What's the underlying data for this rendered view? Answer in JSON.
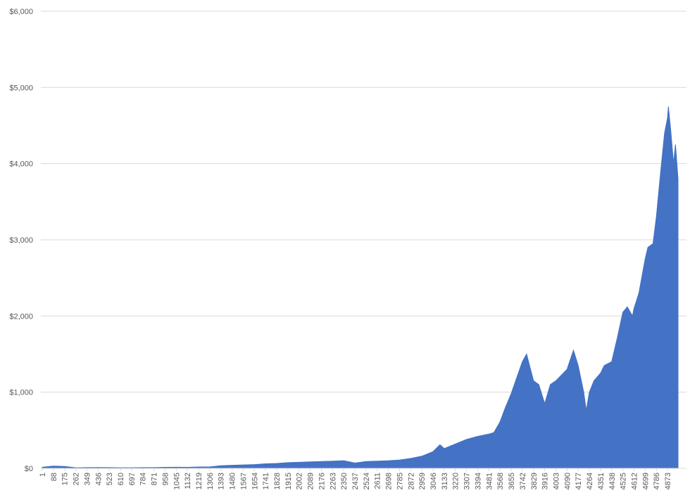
{
  "chart_data": {
    "type": "area",
    "color": "#4472c4",
    "grid": true,
    "x": [
      1,
      88,
      175,
      262,
      349,
      436,
      523,
      610,
      697,
      784,
      871,
      958,
      1045,
      1132,
      1219,
      1306,
      1393,
      1480,
      1567,
      1654,
      1741,
      1828,
      1915,
      2002,
      2089,
      2176,
      2263,
      2350,
      2437,
      2524,
      2611,
      2698,
      2785,
      2872,
      2959,
      3046,
      3100,
      3133,
      3220,
      3307,
      3394,
      3481,
      3520,
      3568,
      3610,
      3655,
      3700,
      3742,
      3775,
      3829,
      3870,
      3916,
      3960,
      4003,
      4090,
      4140,
      4177,
      4220,
      4240,
      4264,
      4300,
      4351,
      4380,
      4438,
      4480,
      4525,
      4560,
      4600,
      4612,
      4650,
      4699,
      4720,
      4760,
      4786,
      4820,
      4850,
      4873,
      4880,
      4900,
      4920,
      4935,
      4955
    ],
    "values": [
      15,
      30,
      25,
      8,
      10,
      12,
      10,
      8,
      8,
      10,
      10,
      14,
      15,
      14,
      18,
      20,
      35,
      40,
      45,
      50,
      60,
      65,
      75,
      80,
      85,
      90,
      95,
      100,
      70,
      90,
      95,
      100,
      110,
      130,
      160,
      220,
      310,
      260,
      320,
      380,
      420,
      450,
      470,
      610,
      800,
      980,
      1200,
      1400,
      1500,
      1150,
      1100,
      850,
      1100,
      1150,
      1300,
      1550,
      1350,
      1000,
      760,
      1000,
      1150,
      1250,
      1350,
      1400,
      1700,
      2050,
      2120,
      2000,
      2100,
      2300,
      2750,
      2900,
      2950,
      3300,
      3900,
      4400,
      4600,
      4750,
      4400,
      4000,
      4250,
      3800
    ],
    "xlim": [
      1,
      4955
    ],
    "xticks": [
      1,
      88,
      175,
      262,
      349,
      436,
      523,
      610,
      697,
      784,
      871,
      958,
      1045,
      1132,
      1219,
      1306,
      1393,
      1480,
      1567,
      1654,
      1741,
      1828,
      1915,
      2002,
      2089,
      2176,
      2263,
      2350,
      2437,
      2524,
      2611,
      2698,
      2785,
      2872,
      2959,
      3046,
      3133,
      3220,
      3307,
      3394,
      3481,
      3568,
      3655,
      3742,
      3829,
      3916,
      4003,
      4090,
      4177,
      4264,
      4351,
      4438,
      4525,
      4612,
      4699,
      4786,
      4873
    ],
    "ylim": [
      0,
      6000
    ],
    "yticks": [
      {
        "value": 0,
        "label": "$0"
      },
      {
        "value": 1000,
        "label": "$1,000"
      },
      {
        "value": 2000,
        "label": "$2,000"
      },
      {
        "value": 3000,
        "label": "$3,000"
      },
      {
        "value": 4000,
        "label": "$4,000"
      },
      {
        "value": 5000,
        "label": "$5,000"
      },
      {
        "value": 6000,
        "label": "$6,000"
      }
    ]
  }
}
